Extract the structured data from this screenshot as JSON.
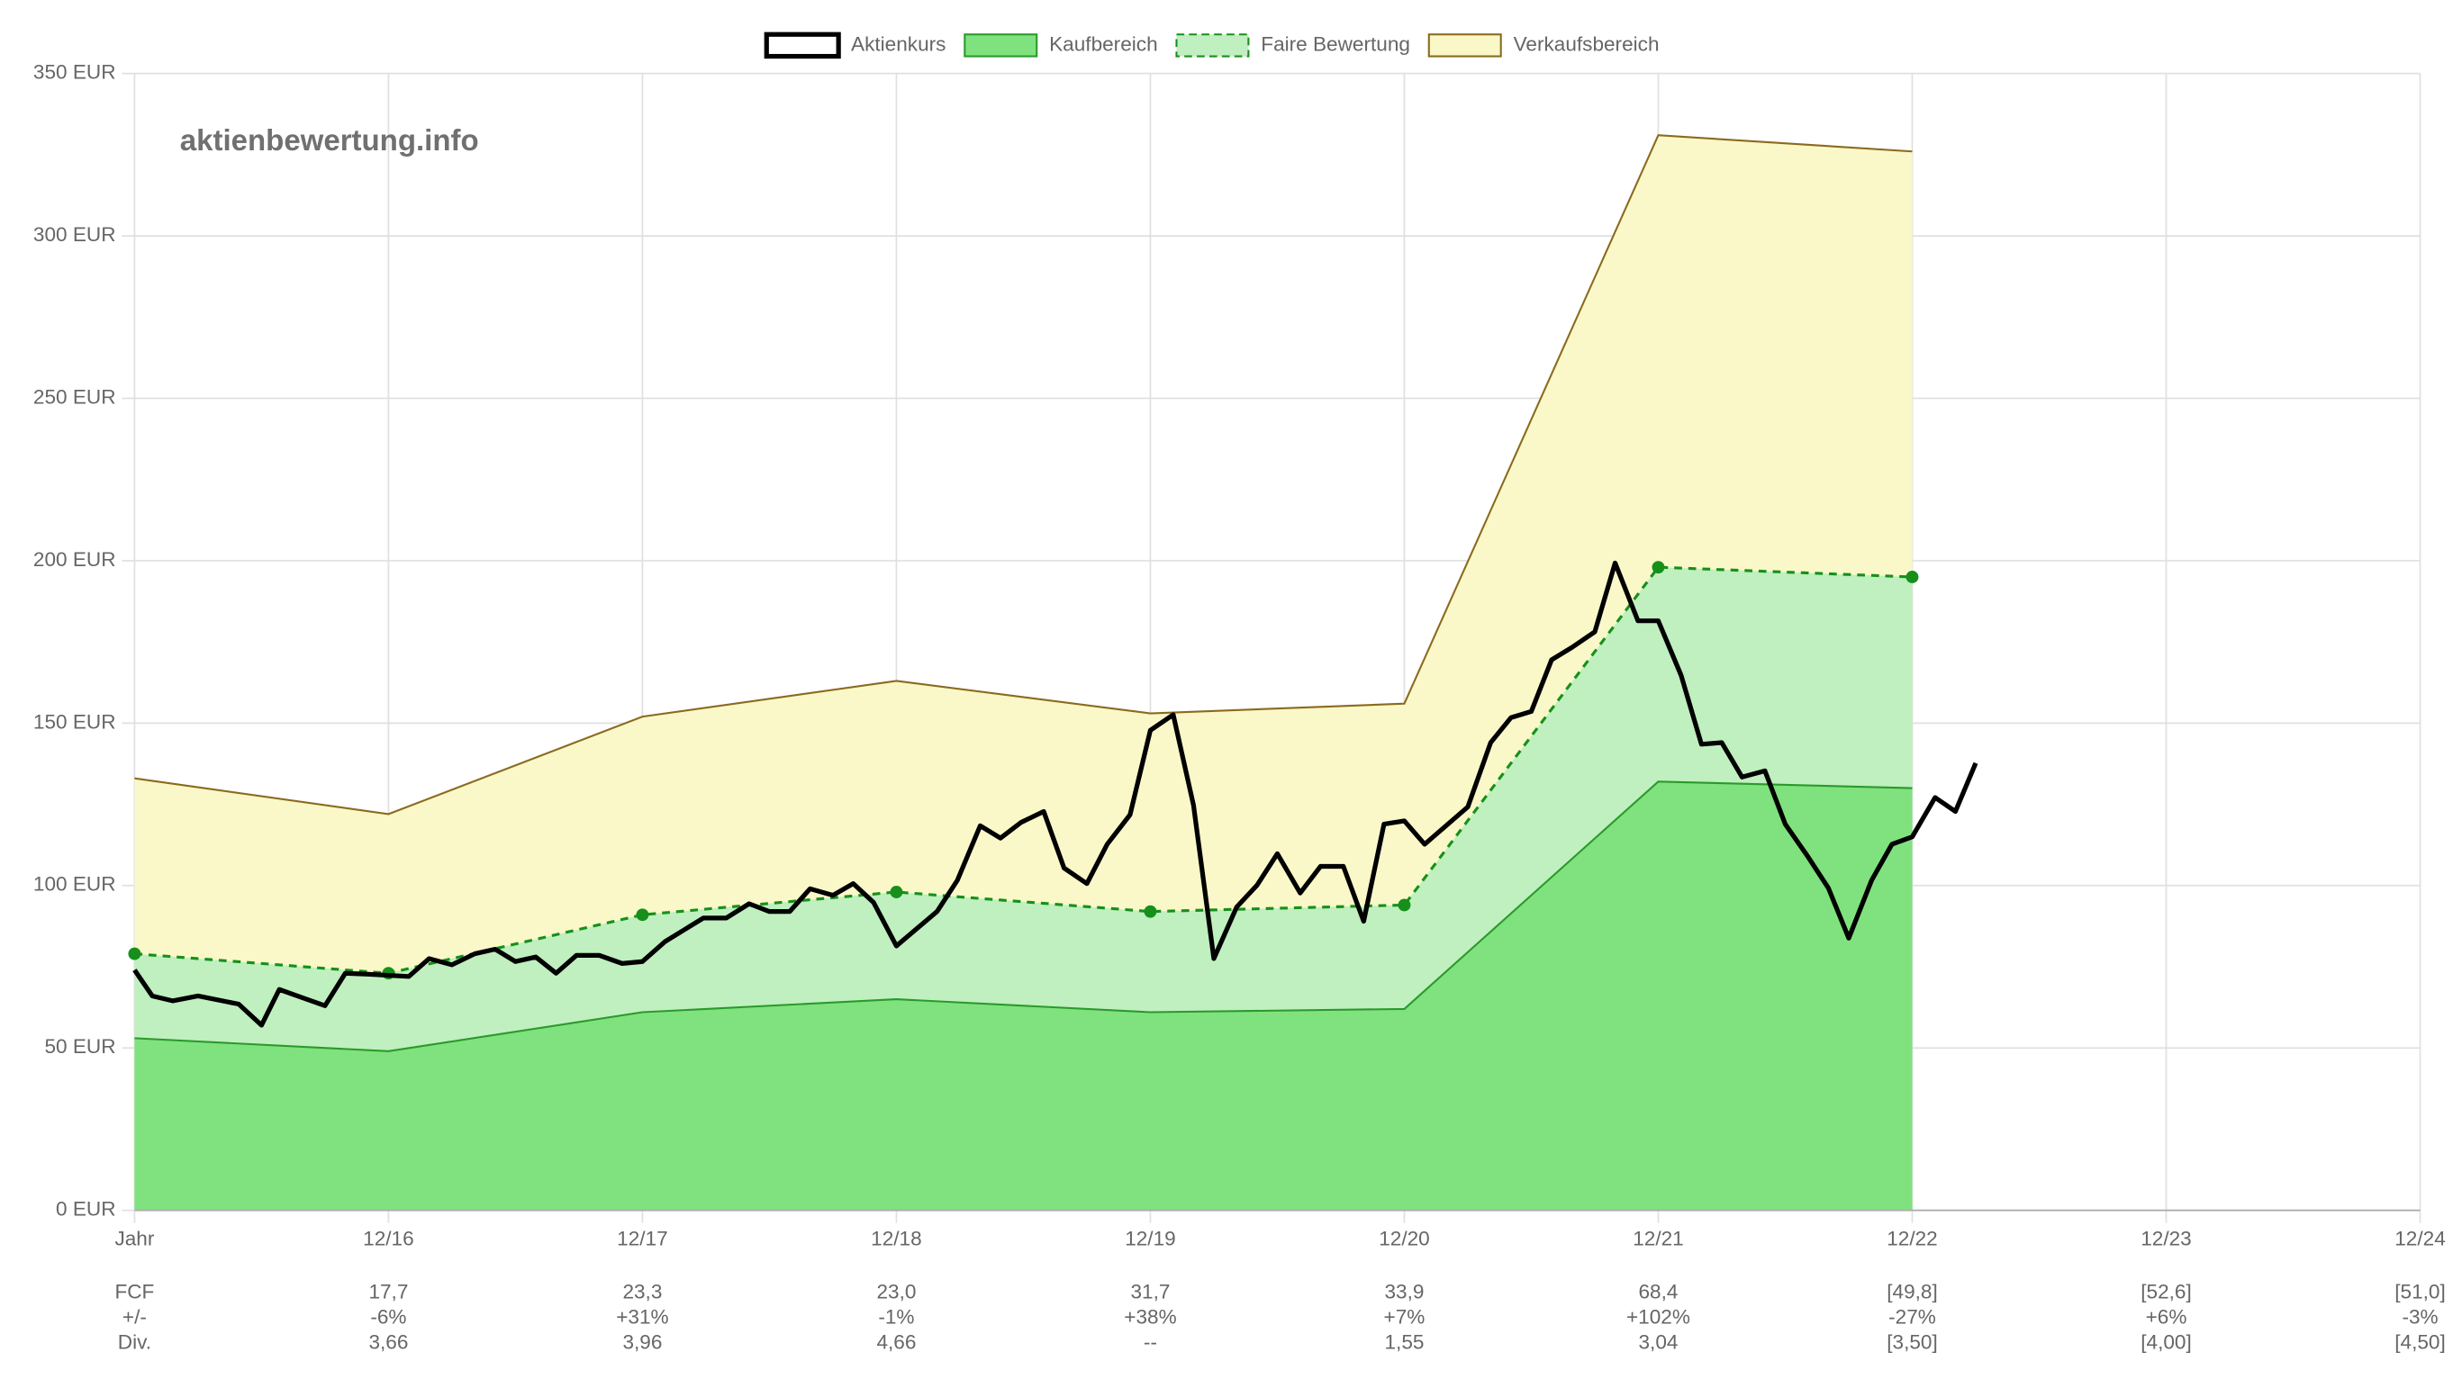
{
  "chart_data": {
    "type": "area-line",
    "watermark": "aktienbewertung.info",
    "xlim": [
      0,
      9
    ],
    "xticks": [
      {
        "value": 0,
        "label": "Jahr"
      },
      {
        "value": 1,
        "label": "12/16"
      },
      {
        "value": 2,
        "label": "12/17"
      },
      {
        "value": 3,
        "label": "12/18"
      },
      {
        "value": 4,
        "label": "12/19"
      },
      {
        "value": 5,
        "label": "12/20"
      },
      {
        "value": 6,
        "label": "12/21"
      },
      {
        "value": 7,
        "label": "12/22"
      },
      {
        "value": 8,
        "label": "12/23"
      },
      {
        "value": 9,
        "label": "12/24"
      }
    ],
    "ylim": [
      0,
      350
    ],
    "yticks": [
      {
        "value": 0,
        "label": "0 EUR"
      },
      {
        "value": 50,
        "label": "50 EUR"
      },
      {
        "value": 100,
        "label": "100 EUR"
      },
      {
        "value": 150,
        "label": "150 EUR"
      },
      {
        "value": 200,
        "label": "200 EUR"
      },
      {
        "value": 250,
        "label": "250 EUR"
      },
      {
        "value": 300,
        "label": "300 EUR"
      },
      {
        "value": 350,
        "label": "350 EUR"
      }
    ],
    "grid": true,
    "legend": "top",
    "series": [
      {
        "name": "Aktienkurs",
        "kind": "line",
        "color": "#000000",
        "x": [
          0,
          0.07,
          0.15,
          0.25,
          0.41,
          0.5,
          0.57,
          0.66,
          0.75,
          0.83,
          0.92,
          1.08,
          1.16,
          1.25,
          1.34,
          1.42,
          1.5,
          1.58,
          1.66,
          1.74,
          1.83,
          1.92,
          2.0,
          2.09,
          2.24,
          2.33,
          2.42,
          2.5,
          2.58,
          2.66,
          2.75,
          2.83,
          2.91,
          3.0,
          3.08,
          3.16,
          3.24,
          3.33,
          3.41,
          3.49,
          3.58,
          3.66,
          3.75,
          3.83,
          3.92,
          4.0,
          4.09,
          4.17,
          4.25,
          4.34,
          4.42,
          4.5,
          4.59,
          4.67,
          4.76,
          4.84,
          4.92,
          5.0,
          5.08,
          5.25,
          5.34,
          5.42,
          5.5,
          5.58,
          5.66,
          5.75,
          5.83,
          5.92,
          6.0,
          6.09,
          6.17,
          6.25,
          6.33,
          6.42,
          6.5,
          6.59,
          6.67,
          6.75,
          6.84,
          6.92,
          7.0,
          7.09,
          7.17,
          7.25
        ],
        "values": [
          74,
          66,
          64.5,
          66,
          63.5,
          57,
          68,
          65.5,
          63,
          73,
          72.7,
          72,
          77.5,
          75.6,
          79,
          80.4,
          76.6,
          78,
          73,
          78.5,
          78.5,
          76,
          76.6,
          82.8,
          90,
          90,
          94.4,
          92,
          92,
          99,
          97,
          100.6,
          94.8,
          81.4,
          86.7,
          92,
          101.6,
          118.4,
          114.6,
          119.4,
          122.8,
          105.4,
          100.6,
          112.7,
          121.8,
          147.8,
          152.6,
          124.7,
          77.5,
          93.4,
          100.1,
          109.8,
          97.7,
          105.9,
          105.9,
          89,
          118.9,
          119.9,
          112.7,
          124.2,
          144,
          151.7,
          153.6,
          169.5,
          173.3,
          178.1,
          199.3,
          181.5,
          181.5,
          164.7,
          143.5,
          144,
          133.4,
          135.3,
          118.9,
          108.8,
          99.2,
          83.8,
          101.6,
          112.7,
          115,
          127.1,
          122.8,
          137.7
        ]
      },
      {
        "name": "Kaufbereich",
        "kind": "area",
        "color": "#80e27e",
        "stroke": "#2a9a2a",
        "x": [
          0,
          1,
          2,
          3,
          4,
          5,
          6,
          7
        ],
        "values": [
          53,
          49,
          61,
          65,
          61,
          62,
          132,
          130
        ]
      },
      {
        "name": "Faire Bewertung",
        "kind": "area",
        "dashed": true,
        "points": true,
        "color": "#c0efc0",
        "stroke": "#16901a",
        "x": [
          0,
          1,
          2,
          3,
          4,
          5,
          6,
          7
        ],
        "values": [
          79,
          73,
          91,
          98,
          92,
          94,
          198,
          195
        ]
      },
      {
        "name": "Verkaufsbereich",
        "kind": "area",
        "color": "#faf8c8",
        "stroke": "#8b6a1e",
        "x": [
          0,
          1,
          2,
          3,
          4,
          5,
          6,
          7
        ],
        "values": [
          133,
          122,
          152,
          163,
          153,
          156,
          331,
          326
        ]
      }
    ],
    "table": {
      "rows": [
        {
          "label": "FCF",
          "values": [
            "17,7",
            "23,3",
            "23,0",
            "31,7",
            "33,9",
            "68,4",
            "[49,8]",
            "[52,6]",
            "[51,0]"
          ]
        },
        {
          "label": "+/-",
          "values": [
            "-6%",
            "+31%",
            "-1%",
            "+38%",
            "+7%",
            "+102%",
            "-27%",
            "+6%",
            "-3%"
          ]
        },
        {
          "label": "Div.",
          "values": [
            "3,66",
            "3,96",
            "4,66",
            "--",
            "1,55",
            "3,04",
            "[3,50]",
            "[4,00]",
            "[4,50]"
          ]
        }
      ]
    }
  }
}
